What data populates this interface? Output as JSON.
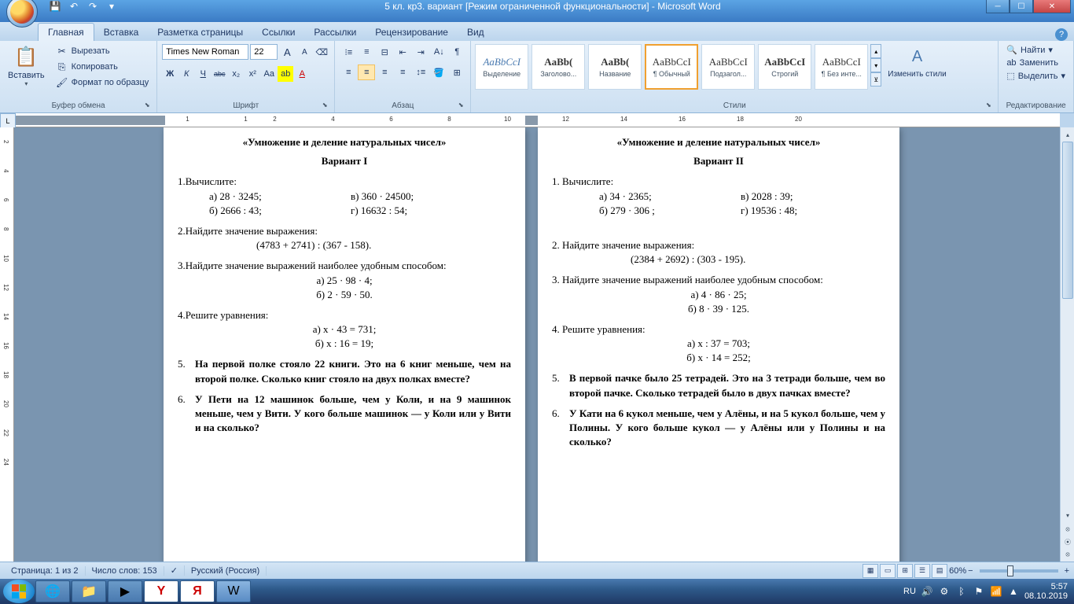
{
  "window": {
    "title": "5 кл. кр3. вариант [Режим ограниченной функциональности] - Microsoft Word"
  },
  "tabs": {
    "home": "Главная",
    "insert": "Вставка",
    "layout": "Разметка страницы",
    "refs": "Ссылки",
    "mail": "Рассылки",
    "review": "Рецензирование",
    "view": "Вид"
  },
  "clipboard": {
    "paste": "Вставить",
    "cut": "Вырезать",
    "copy": "Копировать",
    "format": "Формат по образцу",
    "group": "Буфер обмена"
  },
  "font": {
    "name": "Times New Roman",
    "size": "22",
    "group": "Шрифт",
    "bold": "Ж",
    "italic": "К",
    "underline": "Ч",
    "strike": "abc",
    "sub": "x₂",
    "sup": "x²",
    "case": "Aa",
    "grow": "A",
    "shrink": "A",
    "clear": "Aₓ"
  },
  "paragraph": {
    "group": "Абзац"
  },
  "styles": {
    "group": "Стили",
    "highlight": "Выделение",
    "heading": "Заголово...",
    "title": "Название",
    "normal": "¶ Обычный",
    "subtitle": "Подзагол...",
    "strong": "Строгий",
    "nospace": "¶ Без инте...",
    "change": "Изменить стили",
    "preview": "AaBbCcI"
  },
  "editing": {
    "find": "Найти",
    "replace": "Заменить",
    "select": "Выделить",
    "group": "Редактирование"
  },
  "status": {
    "page": "Страница: 1 из 2",
    "words": "Число слов: 153",
    "lang": "Русский (Россия)",
    "zoom": "60%"
  },
  "taskbar": {
    "lang": "RU",
    "time": "5:57",
    "date": "08.10.2019"
  },
  "doc": {
    "title1": "«Умножение и деление натуральных чисел»",
    "var1": "Вариант I",
    "v1_1": "1.Вычислите:",
    "v1_1a": "а) 28 · 3245;",
    "v1_1v": "в) 360 · 24500;",
    "v1_1b": "б) 2666 : 43;",
    "v1_1g": "г) 16632 : 54;",
    "v1_2": "2.Найдите значение выражения:",
    "v1_2e": "(4783 + 2741) : (367 - 158).",
    "v1_3": "3.Найдите значение выражений наиболее удобным способом:",
    "v1_3a": "а) 25 · 98 · 4;",
    "v1_3b": "б) 2 · 59 · 50.",
    "v1_4": "4.Решите уравнения:",
    "v1_4a": "а) x · 43 = 731;",
    "v1_4b": "б) x : 16 = 19;",
    "v1_5n": "5.",
    "v1_5": "На первой полке стояло 22 книги. Это на 6 книг меньше, чем на второй полке. Сколько книг стояло на двух полках вместе?",
    "v1_6n": "6.",
    "v1_6": "У Пети на 12 машинок больше, чем у Коли, и на 9 машинок меньше, чем у Вити. У кого больше машинок — у Коли или у Вити и на сколько?",
    "title2": "«Умножение и деление натуральных чисел»",
    "var2": "Вариант II",
    "v2_1": "1.  Вычислите:",
    "v2_1a": "а) 34 · 2365;",
    "v2_1v": "в) 2028 : 39;",
    "v2_1b": "б) 279 · 306 ;",
    "v2_1g": "г) 19536 : 48;",
    "v2_2": "2.  Найдите значение выражения:",
    "v2_2e": "(2384 + 2692) : (303 - 195).",
    "v2_3": "3.  Найдите значение выражений наиболее удобным способом:",
    "v2_3a": "а) 4 · 86 · 25;",
    "v2_3b": "б) 8 · 39 · 125.",
    "v2_4": "4.  Решите уравнения:",
    "v2_4a": "а) x : 37 = 703;",
    "v2_4b": "б) x · 14 = 252;",
    "v2_5n": "5.",
    "v2_5": "В первой пачке было 25 тетрадей. Это на 3 тетради больше, чем во второй пачке. Сколько тетрадей было в двух пачках вместе?",
    "v2_6n": "6.",
    "v2_6": "У Кати на 6 кукол меньше, чем у Алёны, и на 5 кукол больше, чем у Полины. У кого больше кукол — у Алёны или у Полины и на сколько?"
  },
  "ruler_ticks": [
    "1",
    "",
    "1",
    "2",
    "",
    "4",
    "",
    "6",
    "",
    "8",
    "",
    "10",
    "",
    "12",
    "",
    "14",
    "",
    "16",
    "",
    "18",
    "",
    "20"
  ]
}
